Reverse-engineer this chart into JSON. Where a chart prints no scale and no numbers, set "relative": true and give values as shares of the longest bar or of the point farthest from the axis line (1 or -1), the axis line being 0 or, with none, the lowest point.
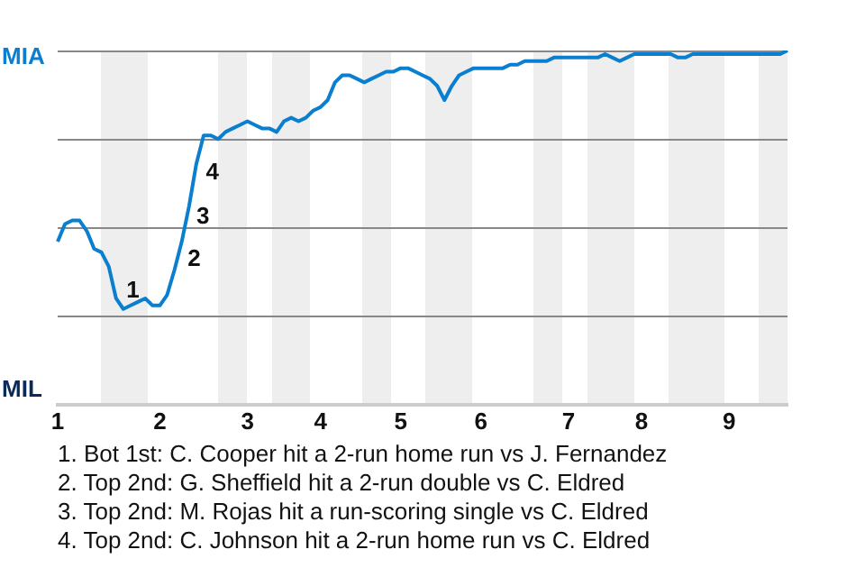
{
  "chart_data": {
    "type": "line",
    "relative": true,
    "categories": [
      "1",
      null,
      null,
      null,
      null,
      null,
      null,
      null,
      null,
      null,
      null,
      null,
      null,
      null,
      "2",
      null,
      null,
      null,
      null,
      null,
      null,
      null,
      null,
      null,
      null,
      null,
      "3",
      null,
      null,
      null,
      null,
      null,
      null,
      null,
      null,
      null,
      "4",
      null,
      null,
      null,
      null,
      null,
      null,
      null,
      null,
      null,
      null,
      "5",
      null,
      null,
      null,
      null,
      null,
      null,
      null,
      null,
      null,
      null,
      "6",
      null,
      null,
      null,
      null,
      null,
      null,
      null,
      null,
      null,
      null,
      null,
      "7",
      null,
      null,
      null,
      null,
      null,
      null,
      null,
      null,
      null,
      "8",
      null,
      null,
      null,
      null,
      null,
      null,
      null,
      null,
      null,
      null,
      null,
      "9",
      null,
      null,
      null,
      null,
      null,
      null,
      null,
      null
    ],
    "series": [
      {
        "color": "#0a7fd0",
        "values": [
          0.46,
          0.51,
          0.52,
          0.52,
          0.49,
          0.44,
          0.43,
          0.39,
          0.3,
          0.27,
          0.28,
          0.29,
          0.3,
          0.28,
          0.28,
          0.31,
          0.38,
          0.46,
          0.56,
          0.68,
          0.76,
          0.76,
          0.75,
          0.77,
          0.78,
          0.79,
          0.8,
          0.79,
          0.78,
          0.78,
          0.77,
          0.8,
          0.81,
          0.8,
          0.81,
          0.83,
          0.84,
          0.86,
          0.91,
          0.93,
          0.93,
          0.92,
          0.91,
          0.92,
          0.93,
          0.94,
          0.94,
          0.95,
          0.95,
          0.94,
          0.93,
          0.92,
          0.9,
          0.86,
          0.9,
          0.93,
          0.94,
          0.95,
          0.95,
          0.95,
          0.95,
          0.95,
          0.96,
          0.96,
          0.97,
          0.97,
          0.97,
          0.97,
          0.98,
          0.98,
          0.98,
          0.98,
          0.98,
          0.98,
          0.98,
          0.99,
          0.98,
          0.97,
          0.98,
          0.99,
          0.99,
          0.99,
          0.99,
          0.99,
          0.99,
          0.98,
          0.98,
          0.99,
          0.99,
          0.99,
          0.99,
          0.99,
          0.99,
          0.99,
          0.99,
          0.99,
          0.99,
          0.99,
          0.99,
          0.99,
          1
        ]
      }
    ],
    "grid": "y",
    "marker": "none",
    "annotations": [
      "MIA",
      "MIL",
      "1",
      "2",
      "3",
      "4",
      "1. Bot 1st: C. Cooper hit a 2-run home run vs J. Fernandez",
      "2. Top 2nd: G. Sheffield hit a 2-run double vs C. Eldred",
      "3. Top 2nd: M. Rojas hit a run-scoring single vs C. Eldred",
      "4. Top 2nd: C. Johnson hit a 2-run home run vs C. Eldred"
    ]
  }
}
